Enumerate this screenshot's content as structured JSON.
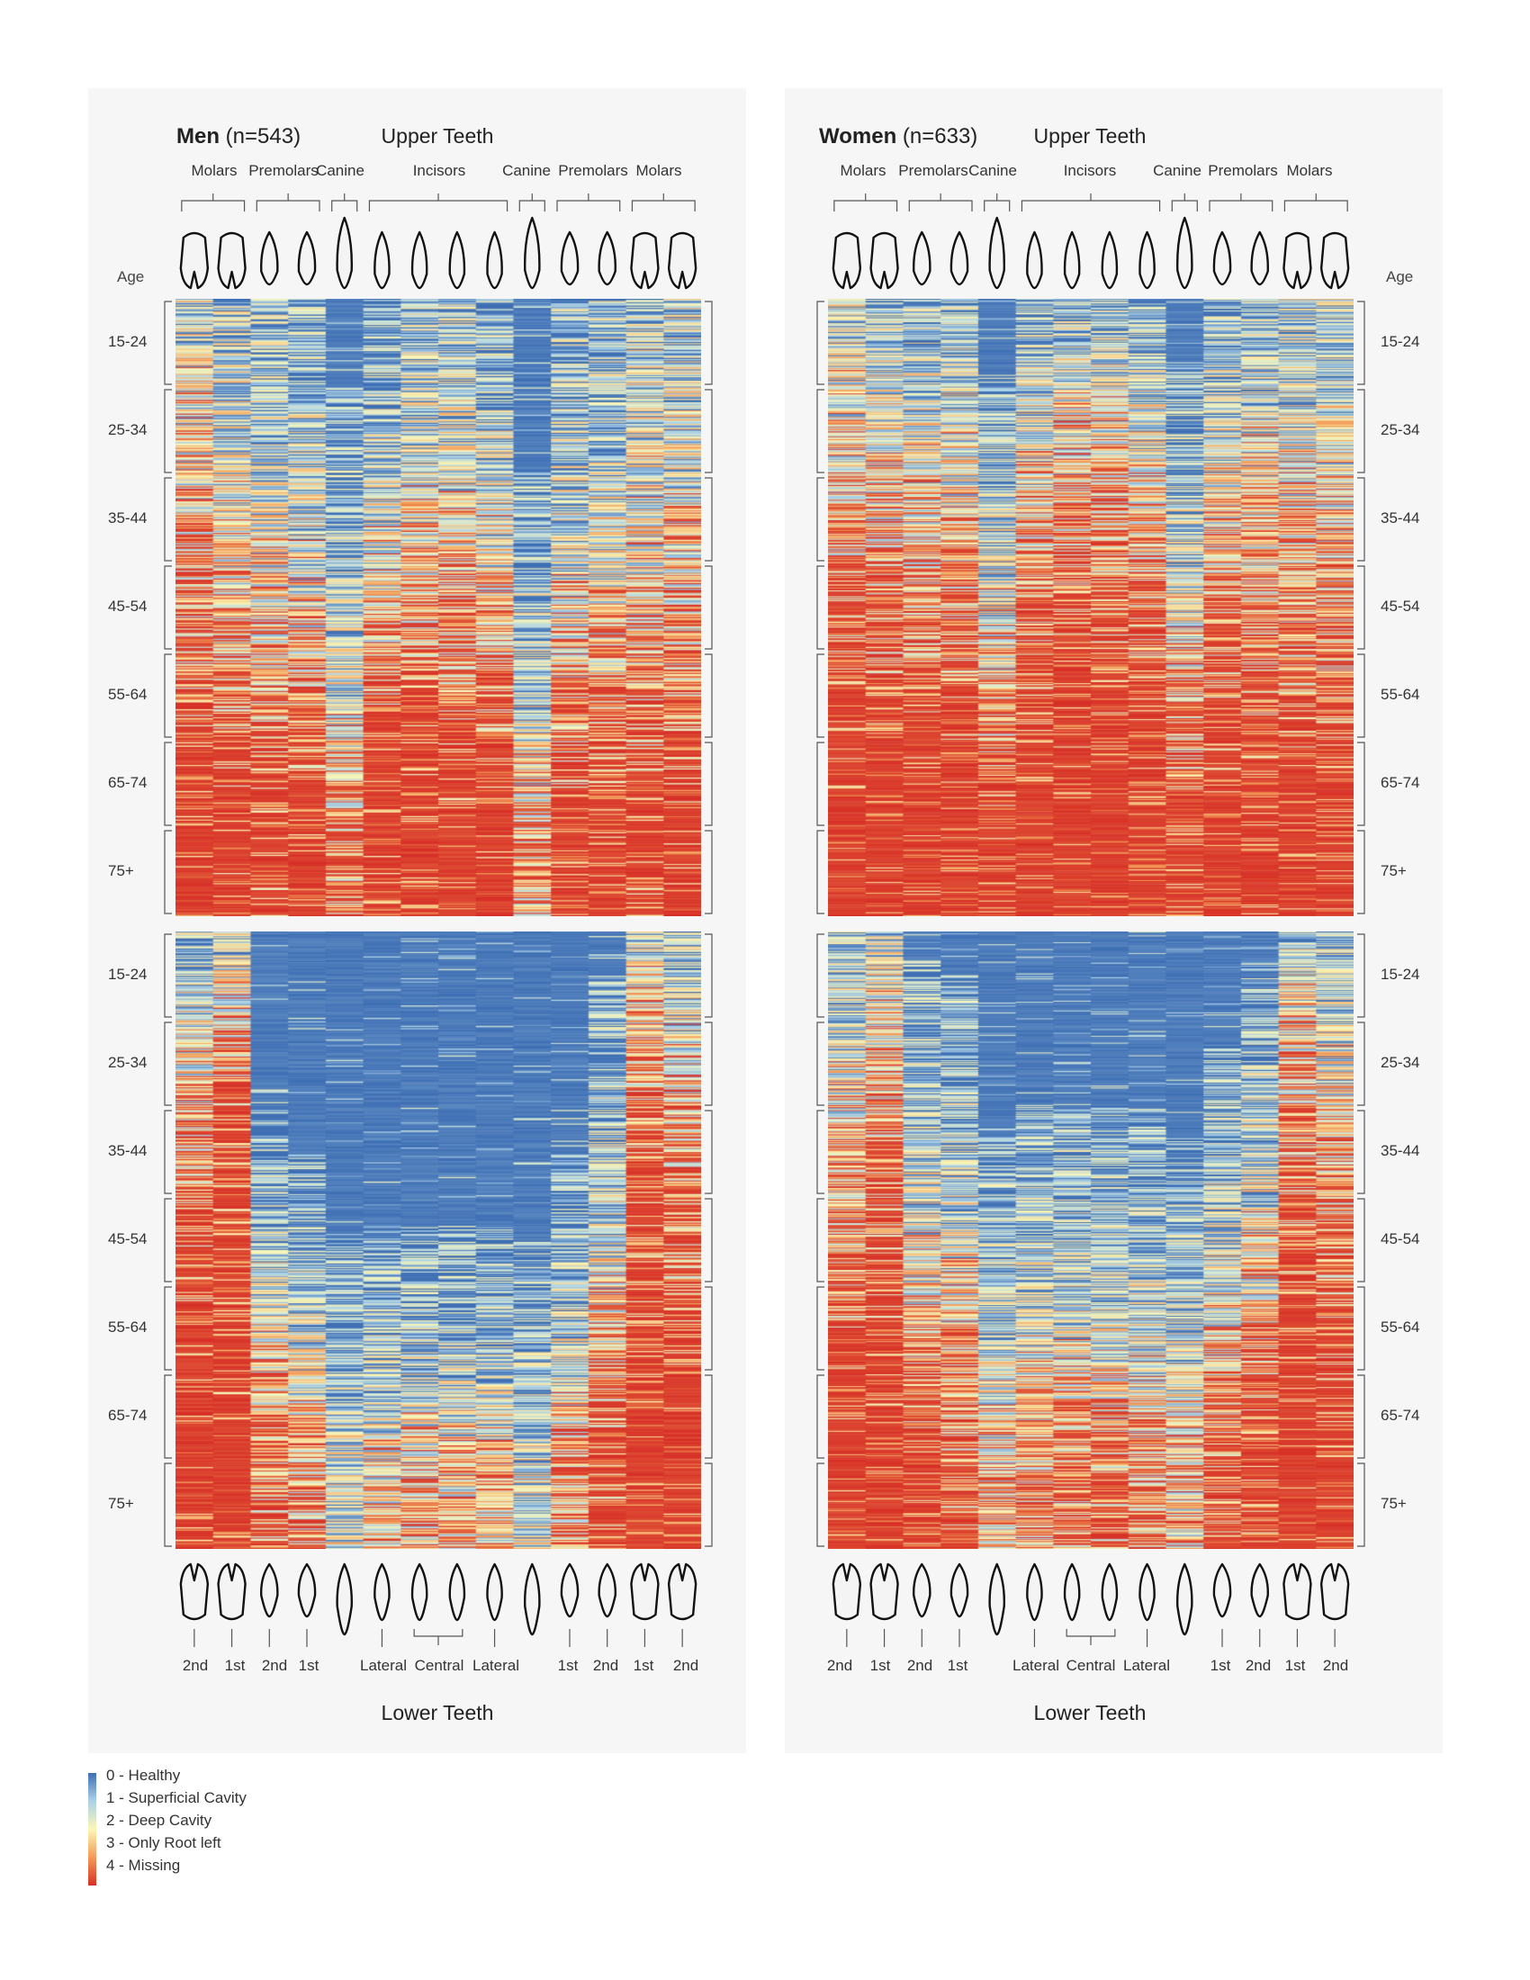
{
  "panels": [
    {
      "id": "men",
      "group": "Men",
      "n": "(n=543)",
      "upper_title": "Upper Teeth",
      "upper_groups": [
        "Molars",
        "Premolars",
        "Canine",
        "Incisors",
        "Canine",
        "Premolars",
        "Molars"
      ],
      "age_heading": "Age",
      "age_groups": [
        "15-24",
        "25-34",
        "35-44",
        "45-54",
        "55-64",
        "65-74",
        "75+"
      ],
      "lower_labels": [
        "2nd",
        "1st",
        "2nd",
        "1st",
        "Lateral",
        "Central",
        "Lateral",
        "1st",
        "2nd",
        "1st",
        "2nd"
      ],
      "lower_title": "Lower Teeth"
    },
    {
      "id": "women",
      "group": "Women",
      "n": "(n=633)",
      "upper_title": "Upper Teeth",
      "upper_groups": [
        "Molars",
        "Premolars",
        "Canine",
        "Incisors",
        "Canine",
        "Premolars",
        "Molars"
      ],
      "age_heading": "Age",
      "age_groups": [
        "15-24",
        "25-34",
        "35-44",
        "45-54",
        "55-64",
        "65-74",
        "75+"
      ],
      "lower_labels": [
        "2nd",
        "1st",
        "2nd",
        "1st",
        "Lateral",
        "Central",
        "Lateral",
        "1st",
        "2nd",
        "1st",
        "2nd"
      ],
      "lower_title": "Lower Teeth"
    }
  ],
  "legend": {
    "items": [
      "0 - Healthy",
      "1 - Superficial Cavity",
      "2 - Deep Cavity",
      "3 - Only Root left",
      "4 - Missing"
    ],
    "colors": [
      "#3f6fb4",
      "#acd2e8",
      "#fbf7b6",
      "#f39b57",
      "#d73027"
    ]
  },
  "chart_data": [
    {
      "type": "heatmap",
      "title": "Men (n=543)",
      "n": 543,
      "scale": {
        "min": 0,
        "max": 4
      },
      "rows": "individuals sorted by age group",
      "row_groups": [
        "15-24",
        "25-34",
        "35-44",
        "45-54",
        "55-64",
        "65-74",
        "75+"
      ],
      "upper_teeth": {
        "columns": [
          "Molar 2",
          "Molar 1",
          "Premolar 2",
          "Premolar 1",
          "Canine",
          "Incisor L",
          "Incisor C",
          "Incisor C",
          "Incisor L",
          "Canine",
          "Premolar 1",
          "Premolar 2",
          "Molar 1",
          "Molar 2"
        ],
        "approx_mean_score_by_age": [
          [
            1.4,
            1.1,
            0.8,
            0.7,
            0.3,
            0.4,
            0.8,
            0.8,
            0.5,
            0.1,
            0.7,
            0.8,
            1.2,
            1.1
          ],
          [
            1.7,
            1.3,
            1.0,
            0.9,
            0.4,
            0.8,
            1.2,
            1.2,
            0.9,
            0.2,
            0.9,
            1.0,
            1.4,
            1.3
          ],
          [
            2.0,
            1.6,
            1.4,
            1.3,
            0.6,
            1.3,
            1.6,
            1.6,
            1.4,
            0.4,
            1.2,
            1.3,
            1.6,
            1.6
          ],
          [
            2.3,
            2.0,
            1.8,
            1.7,
            0.9,
            1.8,
            2.1,
            2.1,
            1.9,
            0.7,
            1.6,
            1.7,
            1.9,
            2.0
          ],
          [
            2.7,
            2.4,
            2.3,
            2.2,
            1.3,
            2.4,
            2.6,
            2.6,
            2.4,
            1.1,
            2.1,
            2.2,
            2.3,
            2.4
          ],
          [
            3.1,
            2.9,
            2.9,
            2.8,
            1.8,
            3.0,
            3.1,
            3.1,
            3.0,
            1.6,
            2.6,
            2.7,
            2.8,
            2.9
          ],
          [
            3.5,
            3.4,
            3.4,
            3.4,
            2.6,
            3.5,
            3.6,
            3.6,
            3.5,
            2.4,
            3.3,
            3.3,
            3.3,
            3.4
          ]
        ]
      },
      "lower_teeth": {
        "columns": [
          "Molar 2",
          "Molar 1",
          "Premolar 2",
          "Premolar 1",
          "Canine",
          "Incisor L",
          "Incisor C",
          "Incisor C",
          "Incisor L",
          "Canine",
          "Premolar 1",
          "Premolar 2",
          "Molar 1",
          "Molar 2"
        ],
        "approx_mean_score_by_age": [
          [
            0.9,
            1.3,
            0.1,
            0.1,
            0.0,
            0.0,
            0.0,
            0.0,
            0.0,
            0.0,
            0.1,
            0.3,
            1.3,
            0.9
          ],
          [
            1.5,
            2.2,
            0.2,
            0.1,
            0.0,
            0.0,
            0.0,
            0.0,
            0.0,
            0.0,
            0.1,
            0.5,
            2.2,
            1.5
          ],
          [
            2.2,
            2.8,
            0.4,
            0.3,
            0.1,
            0.2,
            0.2,
            0.2,
            0.2,
            0.1,
            0.3,
            0.8,
            2.8,
            2.2
          ],
          [
            2.6,
            3.1,
            0.7,
            0.5,
            0.3,
            0.3,
            0.3,
            0.3,
            0.3,
            0.3,
            0.5,
            1.2,
            3.1,
            2.6
          ],
          [
            3.0,
            3.3,
            1.3,
            1.0,
            0.5,
            0.6,
            0.6,
            0.6,
            0.6,
            0.5,
            1.0,
            1.8,
            3.3,
            3.0
          ],
          [
            3.3,
            3.5,
            2.0,
            1.6,
            0.8,
            1.1,
            1.2,
            1.2,
            1.1,
            0.8,
            1.6,
            2.5,
            3.5,
            3.3
          ],
          [
            3.6,
            3.7,
            2.8,
            2.5,
            1.5,
            2.0,
            2.1,
            2.1,
            2.0,
            1.5,
            2.5,
            3.1,
            3.7,
            3.6
          ]
        ]
      },
      "color_scale": [
        "0 - Healthy",
        "1 - Superficial Cavity",
        "2 - Deep Cavity",
        "3 - Only Root left",
        "4 - Missing"
      ]
    },
    {
      "type": "heatmap",
      "title": "Women (n=633)",
      "n": 633,
      "scale": {
        "min": 0,
        "max": 4
      },
      "rows": "individuals sorted by age group",
      "row_groups": [
        "15-24",
        "25-34",
        "35-44",
        "45-54",
        "55-64",
        "65-74",
        "75+"
      ],
      "upper_teeth": {
        "columns": [
          "Molar 2",
          "Molar 1",
          "Premolar 2",
          "Premolar 1",
          "Canine",
          "Incisor L",
          "Incisor C",
          "Incisor C",
          "Incisor L",
          "Canine",
          "Premolar 1",
          "Premolar 2",
          "Molar 1",
          "Molar 2"
        ],
        "approx_mean_score_by_age": [
          [
            1.3,
            1.0,
            0.8,
            0.7,
            0.2,
            0.5,
            0.8,
            0.8,
            0.5,
            0.2,
            0.7,
            0.8,
            1.0,
            1.1
          ],
          [
            1.7,
            1.5,
            1.3,
            1.3,
            0.4,
            1.3,
            1.6,
            1.6,
            1.3,
            0.5,
            1.2,
            1.3,
            1.4,
            1.4
          ],
          [
            2.1,
            2.0,
            1.8,
            1.8,
            0.9,
            1.9,
            2.1,
            2.1,
            1.9,
            0.9,
            1.7,
            1.8,
            1.8,
            1.8
          ],
          [
            2.5,
            2.4,
            2.3,
            2.3,
            1.4,
            2.4,
            2.6,
            2.6,
            2.4,
            1.4,
            2.2,
            2.2,
            2.2,
            2.2
          ],
          [
            2.9,
            2.8,
            2.8,
            2.8,
            2.0,
            2.9,
            3.0,
            3.0,
            2.9,
            2.0,
            2.7,
            2.7,
            2.6,
            2.6
          ],
          [
            3.3,
            3.2,
            3.2,
            3.2,
            2.7,
            3.3,
            3.4,
            3.4,
            3.3,
            2.6,
            3.1,
            3.1,
            3.0,
            3.1
          ],
          [
            3.7,
            3.7,
            3.7,
            3.7,
            3.3,
            3.7,
            3.8,
            3.8,
            3.7,
            3.3,
            3.6,
            3.6,
            3.6,
            3.7
          ]
        ]
      },
      "lower_teeth": {
        "columns": [
          "Molar 2",
          "Molar 1",
          "Premolar 2",
          "Premolar 1",
          "Canine",
          "Incisor L",
          "Incisor C",
          "Incisor C",
          "Incisor L",
          "Canine",
          "Premolar 1",
          "Premolar 2",
          "Molar 1",
          "Molar 2"
        ],
        "approx_mean_score_by_age": [
          [
            0.8,
            1.2,
            0.3,
            0.3,
            0.0,
            0.0,
            0.0,
            0.0,
            0.0,
            0.0,
            0.1,
            0.3,
            1.2,
            0.8
          ],
          [
            1.4,
            1.9,
            0.6,
            0.5,
            0.1,
            0.1,
            0.1,
            0.1,
            0.1,
            0.1,
            0.3,
            0.6,
            1.9,
            1.4
          ],
          [
            1.9,
            2.4,
            1.0,
            0.9,
            0.3,
            0.4,
            0.4,
            0.4,
            0.4,
            0.3,
            0.7,
            1.0,
            2.4,
            1.9
          ],
          [
            2.4,
            2.8,
            1.5,
            1.3,
            0.6,
            0.8,
            0.8,
            0.8,
            0.8,
            0.6,
            1.1,
            1.5,
            2.8,
            2.4
          ],
          [
            2.8,
            3.1,
            2.0,
            1.8,
            1.0,
            1.2,
            1.2,
            1.2,
            1.2,
            1.0,
            1.6,
            2.0,
            3.1,
            2.8
          ],
          [
            3.2,
            3.4,
            2.6,
            2.4,
            1.5,
            1.8,
            1.9,
            1.9,
            1.8,
            1.5,
            2.2,
            2.6,
            3.4,
            3.2
          ],
          [
            3.6,
            3.7,
            3.2,
            3.0,
            2.2,
            2.5,
            2.6,
            2.6,
            2.5,
            2.2,
            2.9,
            3.2,
            3.7,
            3.6
          ]
        ]
      },
      "color_scale": [
        "0 - Healthy",
        "1 - Superficial Cavity",
        "2 - Deep Cavity",
        "3 - Only Root left",
        "4 - Missing"
      ]
    }
  ]
}
